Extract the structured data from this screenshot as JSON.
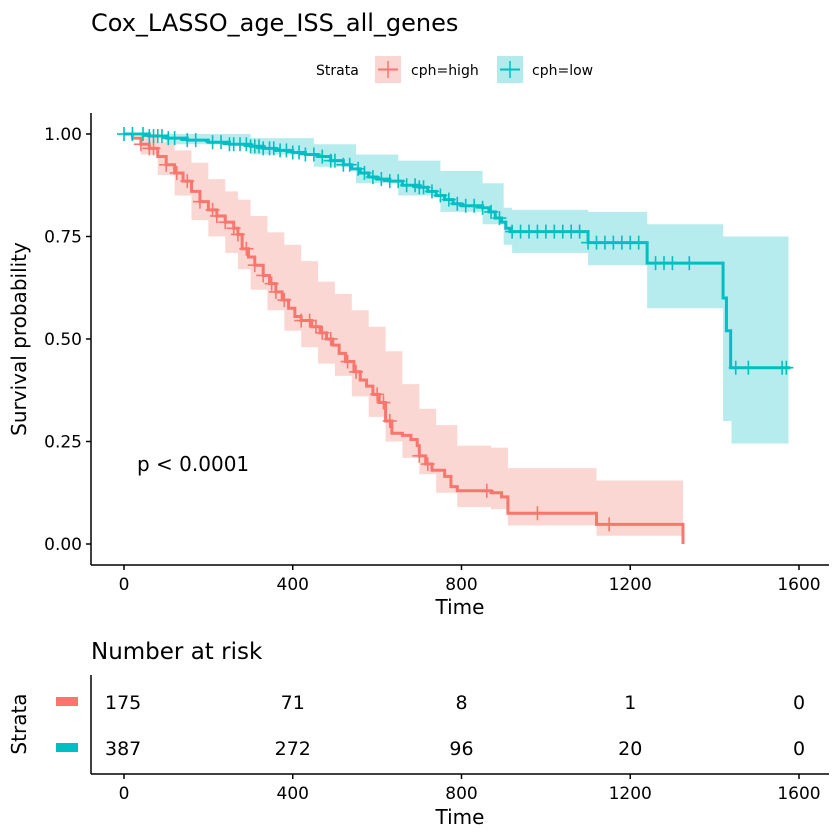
{
  "chart_data": {
    "type": "line",
    "subtype": "kaplan-meier",
    "title": "Cox_LASSO_age_ISS_all_genes",
    "xlabel": "Time",
    "ylabel": "Survival probability",
    "xlim": [
      -80,
      1680
    ],
    "ylim": [
      -0.05,
      1.05
    ],
    "x_ticks": [
      0,
      400,
      800,
      1200,
      1600
    ],
    "x_tick_labels": [
      "0",
      "400",
      "800",
      "1200",
      "1600"
    ],
    "y_ticks": [
      0,
      0.25,
      0.5,
      0.75,
      1.0
    ],
    "y_tick_labels": [
      "0.00",
      "0.25",
      "0.50",
      "0.75",
      "1.00"
    ],
    "grid": false,
    "legend": {
      "title": "Strata",
      "placement": "top",
      "entries": [
        "cph=high",
        "cph=low"
      ]
    },
    "annotation": "p < 0.0001",
    "series": [
      {
        "name": "cph=high",
        "color": "#F8766D",
        "band_color": "#FBD5D2",
        "steps": [
          [
            0,
            1.0
          ],
          [
            20,
            0.99
          ],
          [
            40,
            0.975
          ],
          [
            60,
            0.965
          ],
          [
            80,
            0.945
          ],
          [
            100,
            0.925
          ],
          [
            120,
            0.905
          ],
          [
            140,
            0.885
          ],
          [
            160,
            0.86
          ],
          [
            180,
            0.835
          ],
          [
            200,
            0.815
          ],
          [
            220,
            0.8
          ],
          [
            240,
            0.785
          ],
          [
            260,
            0.77
          ],
          [
            270,
            0.755
          ],
          [
            280,
            0.72
          ],
          [
            295,
            0.7
          ],
          [
            310,
            0.68
          ],
          [
            330,
            0.655
          ],
          [
            345,
            0.635
          ],
          [
            360,
            0.615
          ],
          [
            375,
            0.595
          ],
          [
            390,
            0.575
          ],
          [
            405,
            0.555
          ],
          [
            420,
            0.545
          ],
          [
            445,
            0.53
          ],
          [
            465,
            0.515
          ],
          [
            480,
            0.5
          ],
          [
            495,
            0.485
          ],
          [
            510,
            0.465
          ],
          [
            525,
            0.445
          ],
          [
            545,
            0.42
          ],
          [
            560,
            0.4
          ],
          [
            575,
            0.385
          ],
          [
            590,
            0.365
          ],
          [
            605,
            0.345
          ],
          [
            620,
            0.3
          ],
          [
            635,
            0.27
          ],
          [
            660,
            0.265
          ],
          [
            680,
            0.255
          ],
          [
            695,
            0.24
          ],
          [
            700,
            0.215
          ],
          [
            715,
            0.195
          ],
          [
            730,
            0.18
          ],
          [
            760,
            0.165
          ],
          [
            775,
            0.14
          ],
          [
            790,
            0.13
          ],
          [
            870,
            0.125
          ],
          [
            895,
            0.115
          ],
          [
            910,
            0.075
          ],
          [
            1120,
            0.048
          ],
          [
            1325,
            0.0
          ]
        ],
        "lower": [
          [
            0,
            1.0
          ],
          [
            40,
            0.95
          ],
          [
            80,
            0.9
          ],
          [
            120,
            0.85
          ],
          [
            160,
            0.79
          ],
          [
            200,
            0.75
          ],
          [
            240,
            0.71
          ],
          [
            270,
            0.67
          ],
          [
            300,
            0.62
          ],
          [
            340,
            0.57
          ],
          [
            380,
            0.52
          ],
          [
            420,
            0.48
          ],
          [
            460,
            0.44
          ],
          [
            500,
            0.41
          ],
          [
            540,
            0.36
          ],
          [
            580,
            0.31
          ],
          [
            620,
            0.25
          ],
          [
            660,
            0.21
          ],
          [
            700,
            0.17
          ],
          [
            740,
            0.125
          ],
          [
            790,
            0.09
          ],
          [
            870,
            0.085
          ],
          [
            910,
            0.045
          ],
          [
            1120,
            0.02
          ],
          [
            1325,
            0.02
          ]
        ],
        "upper": [
          [
            0,
            1.0
          ],
          [
            40,
            1.0
          ],
          [
            80,
            0.98
          ],
          [
            120,
            0.96
          ],
          [
            160,
            0.93
          ],
          [
            200,
            0.89
          ],
          [
            240,
            0.86
          ],
          [
            270,
            0.84
          ],
          [
            300,
            0.8
          ],
          [
            340,
            0.76
          ],
          [
            380,
            0.73
          ],
          [
            420,
            0.69
          ],
          [
            460,
            0.64
          ],
          [
            500,
            0.61
          ],
          [
            540,
            0.57
          ],
          [
            580,
            0.53
          ],
          [
            620,
            0.47
          ],
          [
            660,
            0.39
          ],
          [
            700,
            0.33
          ],
          [
            740,
            0.29
          ],
          [
            790,
            0.24
          ],
          [
            870,
            0.235
          ],
          [
            910,
            0.185
          ],
          [
            1120,
            0.155
          ],
          [
            1325,
            0.155
          ]
        ],
        "censored": [
          40,
          60,
          70,
          100,
          125,
          150,
          180,
          210,
          220,
          240,
          260,
          270,
          290,
          310,
          330,
          350,
          360,
          380,
          420,
          440,
          455,
          470,
          490,
          530,
          550,
          600,
          615,
          630,
          700,
          720,
          860,
          980,
          1150
        ]
      },
      {
        "name": "cph=low",
        "color": "#00BFC4",
        "band_color": "#B2EBEC",
        "steps": [
          [
            0,
            1.0
          ],
          [
            60,
            0.995
          ],
          [
            100,
            0.99
          ],
          [
            150,
            0.985
          ],
          [
            200,
            0.98
          ],
          [
            250,
            0.975
          ],
          [
            300,
            0.97
          ],
          [
            330,
            0.965
          ],
          [
            360,
            0.96
          ],
          [
            400,
            0.955
          ],
          [
            430,
            0.95
          ],
          [
            460,
            0.945
          ],
          [
            490,
            0.935
          ],
          [
            520,
            0.925
          ],
          [
            540,
            0.915
          ],
          [
            560,
            0.905
          ],
          [
            580,
            0.895
          ],
          [
            600,
            0.89
          ],
          [
            630,
            0.885
          ],
          [
            660,
            0.875
          ],
          [
            700,
            0.87
          ],
          [
            720,
            0.86
          ],
          [
            740,
            0.85
          ],
          [
            760,
            0.84
          ],
          [
            780,
            0.83
          ],
          [
            800,
            0.825
          ],
          [
            850,
            0.82
          ],
          [
            865,
            0.81
          ],
          [
            880,
            0.795
          ],
          [
            895,
            0.785
          ],
          [
            905,
            0.77
          ],
          [
            915,
            0.762
          ],
          [
            1100,
            0.735
          ],
          [
            1240,
            0.685
          ],
          [
            1420,
            0.6
          ],
          [
            1428,
            0.52
          ],
          [
            1438,
            0.43
          ],
          [
            1580,
            0.43
          ]
        ],
        "lower": [
          [
            0,
            1.0
          ],
          [
            100,
            0.975
          ],
          [
            300,
            0.95
          ],
          [
            450,
            0.92
          ],
          [
            550,
            0.88
          ],
          [
            650,
            0.85
          ],
          [
            750,
            0.81
          ],
          [
            850,
            0.78
          ],
          [
            900,
            0.73
          ],
          [
            920,
            0.71
          ],
          [
            1100,
            0.68
          ],
          [
            1240,
            0.575
          ],
          [
            1420,
            0.3
          ],
          [
            1440,
            0.245
          ],
          [
            1575,
            0.245
          ]
        ],
        "upper": [
          [
            0,
            1.0
          ],
          [
            100,
            1.0
          ],
          [
            300,
            0.99
          ],
          [
            450,
            0.975
          ],
          [
            550,
            0.95
          ],
          [
            650,
            0.935
          ],
          [
            750,
            0.91
          ],
          [
            850,
            0.88
          ],
          [
            900,
            0.82
          ],
          [
            920,
            0.815
          ],
          [
            1100,
            0.81
          ],
          [
            1240,
            0.78
          ],
          [
            1420,
            0.75
          ],
          [
            1440,
            0.75
          ],
          [
            1575,
            0.75
          ]
        ],
        "censored": [
          0,
          20,
          45,
          60,
          70,
          80,
          90,
          105,
          120,
          150,
          170,
          210,
          230,
          250,
          260,
          275,
          290,
          300,
          310,
          320,
          330,
          345,
          355,
          370,
          385,
          400,
          415,
          430,
          450,
          470,
          490,
          500,
          520,
          535,
          555,
          570,
          590,
          610,
          630,
          650,
          670,
          690,
          700,
          710,
          730,
          750,
          770,
          790,
          810,
          830,
          850,
          870,
          890,
          920,
          940,
          960,
          980,
          1000,
          1020,
          1040,
          1060,
          1080,
          1100,
          1120,
          1140,
          1160,
          1180,
          1200,
          1220,
          1260,
          1280,
          1300,
          1340,
          1450,
          1480,
          1560,
          1570
        ]
      }
    ],
    "risk_table": {
      "title": "Number at risk",
      "ylabel": "Strata",
      "xlabel": "Time",
      "times": [
        0,
        400,
        800,
        1200,
        1600
      ],
      "time_labels": [
        "0",
        "400",
        "800",
        "1200",
        "1600"
      ],
      "rows": [
        {
          "strata": "cph=high",
          "color": "#F8766D",
          "counts": [
            "175",
            "71",
            "8",
            "1",
            "0"
          ]
        },
        {
          "strata": "cph=low",
          "color": "#00BFC4",
          "counts": [
            "387",
            "272",
            "96",
            "20",
            "0"
          ]
        }
      ]
    }
  }
}
